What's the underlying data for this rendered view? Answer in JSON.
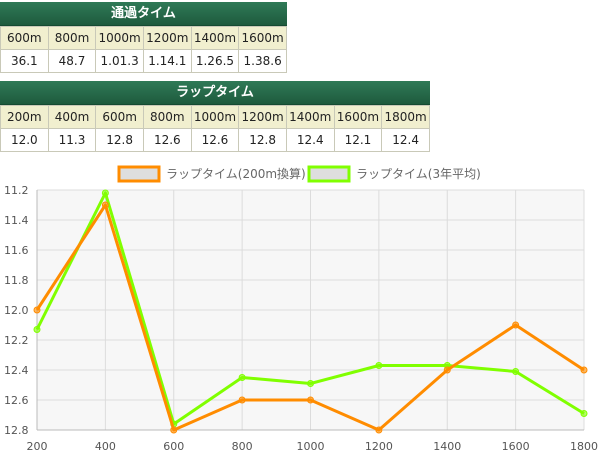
{
  "passing": {
    "title": "通過タイム",
    "headers": [
      "600m",
      "800m",
      "1000m",
      "1200m",
      "1400m",
      "1600m"
    ],
    "values": [
      "36.1",
      "48.7",
      "1.01.3",
      "1.14.1",
      "1.26.5",
      "1.38.6"
    ]
  },
  "lap": {
    "title": "ラップタイム",
    "headers": [
      "200m",
      "400m",
      "600m",
      "800m",
      "1000m",
      "1200m",
      "1400m",
      "1600m",
      "1800m"
    ],
    "values": [
      "12.0",
      "11.3",
      "12.8",
      "12.6",
      "12.6",
      "12.8",
      "12.4",
      "12.1",
      "12.4"
    ]
  },
  "chart_data": {
    "type": "line",
    "x": [
      200,
      400,
      600,
      800,
      1000,
      1200,
      1400,
      1600,
      1800
    ],
    "series": [
      {
        "name": "ラップタイム(200m換算)",
        "color": "#ff8c00",
        "values": [
          12.0,
          11.3,
          12.8,
          12.6,
          12.6,
          12.8,
          12.4,
          12.1,
          12.4
        ]
      },
      {
        "name": "ラップタイム(3年平均)",
        "color": "#80ff00",
        "values": [
          12.13,
          11.22,
          12.76,
          12.45,
          12.49,
          12.37,
          12.37,
          12.41,
          12.69
        ]
      }
    ],
    "ylim": [
      11.2,
      12.8
    ],
    "y_inverted": true,
    "yticks": [
      "11.2",
      "11.4",
      "11.6",
      "11.8",
      "12.0",
      "12.2",
      "12.4",
      "12.6",
      "12.8"
    ],
    "xticks": [
      "200",
      "400",
      "600",
      "800",
      "1000",
      "1200",
      "1400",
      "1600",
      "1800"
    ],
    "legend_position": "top",
    "grid": true
  }
}
